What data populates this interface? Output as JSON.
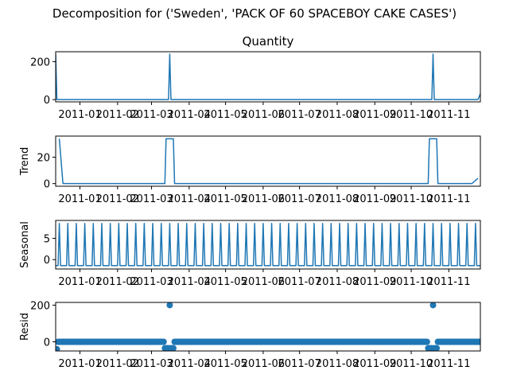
{
  "figure_title": "Decomposition for ('Sweden', 'PACK OF 60 SPACEBOY CAKE CASES')",
  "x_ticks": [
    "2011-01",
    "2011-02",
    "2011-03",
    "2011-04",
    "2011-05",
    "2011-06",
    "2011-07",
    "2011-08",
    "2011-09",
    "2011-10",
    "2011-11"
  ],
  "colors": {
    "line": "#1f77b4",
    "axes": "#000000",
    "background": "#ffffff"
  },
  "chart_data": [
    {
      "type": "line",
      "panel": "observed",
      "title": "Quantity",
      "ylabel": "",
      "yticks": [
        0,
        200
      ],
      "ylim": [
        -12,
        252
      ],
      "x_range": [
        "2010-12-12",
        "2011-11-27"
      ],
      "points": [
        {
          "x": "2010-12-12",
          "y": 240
        },
        {
          "x": "2010-12-13",
          "y": 0
        },
        {
          "x": "2011-03-15",
          "y": 0
        },
        {
          "x": "2011-03-16",
          "y": 240
        },
        {
          "x": "2011-03-17",
          "y": 0
        },
        {
          "x": "2011-10-18",
          "y": 0
        },
        {
          "x": "2011-10-19",
          "y": 240
        },
        {
          "x": "2011-10-20",
          "y": 0
        },
        {
          "x": "2011-11-25",
          "y": 0
        },
        {
          "x": "2011-11-27",
          "y": 30
        }
      ]
    },
    {
      "type": "line",
      "panel": "trend",
      "title": "",
      "ylabel": "Trend",
      "yticks": [
        0,
        20
      ],
      "ylim": [
        -2,
        36
      ],
      "x_range": [
        "2010-12-12",
        "2011-11-27"
      ],
      "points": [
        {
          "x": "2010-12-15",
          "y": 34
        },
        {
          "x": "2010-12-18",
          "y": 0
        },
        {
          "x": "2011-03-12",
          "y": 0
        },
        {
          "x": "2011-03-13",
          "y": 34
        },
        {
          "x": "2011-03-19",
          "y": 34
        },
        {
          "x": "2011-03-20",
          "y": 0
        },
        {
          "x": "2011-10-15",
          "y": 0
        },
        {
          "x": "2011-10-16",
          "y": 34
        },
        {
          "x": "2011-10-22",
          "y": 34
        },
        {
          "x": "2011-10-23",
          "y": 0
        },
        {
          "x": "2011-11-20",
          "y": 0
        },
        {
          "x": "2011-11-25",
          "y": 4
        }
      ]
    },
    {
      "type": "line",
      "panel": "seasonal",
      "title": "",
      "ylabel": "Seasonal",
      "yticks": [
        0,
        5
      ],
      "ylim": [
        -2.2,
        9.2
      ],
      "x_range": [
        "2010-12-12",
        "2011-11-27"
      ],
      "period_days": 7,
      "first_peak": "2010-12-15",
      "peak_value": 8.5,
      "base_value": -1.4
    },
    {
      "type": "scatter",
      "panel": "resid",
      "title": "",
      "ylabel": "Resid",
      "yticks": [
        0,
        200
      ],
      "ylim": [
        -50,
        215
      ],
      "x_range": [
        "2010-12-12",
        "2011-11-27"
      ],
      "start": "2010-12-12",
      "end": "2011-11-27",
      "default_value": 0,
      "points": [
        {
          "x": "2010-12-12",
          "y": -40
        },
        {
          "x": "2010-12-13",
          "y": -40
        },
        {
          "x": "2011-03-12",
          "y": -35
        },
        {
          "x": "2011-03-13",
          "y": -35
        },
        {
          "x": "2011-03-14",
          "y": -35
        },
        {
          "x": "2011-03-15",
          "y": -35
        },
        {
          "x": "2011-03-16",
          "y": 200
        },
        {
          "x": "2011-03-17",
          "y": -35
        },
        {
          "x": "2011-03-18",
          "y": -35
        },
        {
          "x": "2011-03-19",
          "y": -35
        },
        {
          "x": "2011-10-15",
          "y": -35
        },
        {
          "x": "2011-10-16",
          "y": -35
        },
        {
          "x": "2011-10-17",
          "y": -35
        },
        {
          "x": "2011-10-18",
          "y": -35
        },
        {
          "x": "2011-10-19",
          "y": 200
        },
        {
          "x": "2011-10-20",
          "y": -35
        },
        {
          "x": "2011-10-21",
          "y": -35
        },
        {
          "x": "2011-10-22",
          "y": -35
        }
      ]
    }
  ]
}
